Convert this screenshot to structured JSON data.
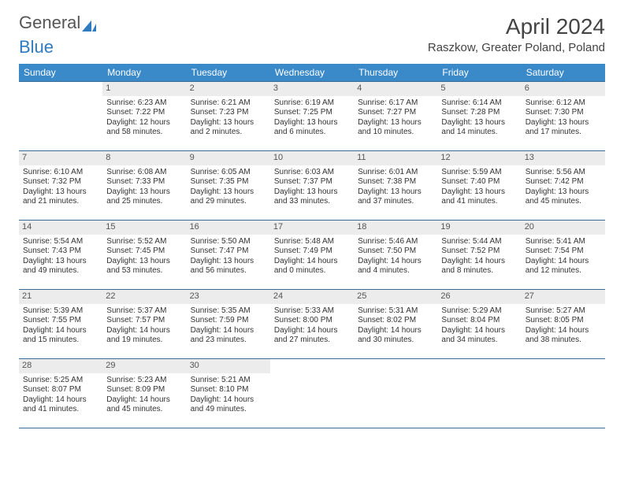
{
  "logo": {
    "part1": "General",
    "part2": "Blue"
  },
  "title": "April 2024",
  "location": "Raszkow, Greater Poland, Poland",
  "colors": {
    "header_bg": "#3a89c9",
    "header_text": "#ffffff",
    "cell_border": "#3a6b95",
    "daynum_bg": "#ececec",
    "logo_blue": "#2f7bbf"
  },
  "day_headers": [
    "Sunday",
    "Monday",
    "Tuesday",
    "Wednesday",
    "Thursday",
    "Friday",
    "Saturday"
  ],
  "weeks": [
    [
      {
        "n": "",
        "sr": "",
        "ss": "",
        "dl": ""
      },
      {
        "n": "1",
        "sr": "Sunrise: 6:23 AM",
        "ss": "Sunset: 7:22 PM",
        "dl": "Daylight: 12 hours and 58 minutes."
      },
      {
        "n": "2",
        "sr": "Sunrise: 6:21 AM",
        "ss": "Sunset: 7:23 PM",
        "dl": "Daylight: 13 hours and 2 minutes."
      },
      {
        "n": "3",
        "sr": "Sunrise: 6:19 AM",
        "ss": "Sunset: 7:25 PM",
        "dl": "Daylight: 13 hours and 6 minutes."
      },
      {
        "n": "4",
        "sr": "Sunrise: 6:17 AM",
        "ss": "Sunset: 7:27 PM",
        "dl": "Daylight: 13 hours and 10 minutes."
      },
      {
        "n": "5",
        "sr": "Sunrise: 6:14 AM",
        "ss": "Sunset: 7:28 PM",
        "dl": "Daylight: 13 hours and 14 minutes."
      },
      {
        "n": "6",
        "sr": "Sunrise: 6:12 AM",
        "ss": "Sunset: 7:30 PM",
        "dl": "Daylight: 13 hours and 17 minutes."
      }
    ],
    [
      {
        "n": "7",
        "sr": "Sunrise: 6:10 AM",
        "ss": "Sunset: 7:32 PM",
        "dl": "Daylight: 13 hours and 21 minutes."
      },
      {
        "n": "8",
        "sr": "Sunrise: 6:08 AM",
        "ss": "Sunset: 7:33 PM",
        "dl": "Daylight: 13 hours and 25 minutes."
      },
      {
        "n": "9",
        "sr": "Sunrise: 6:05 AM",
        "ss": "Sunset: 7:35 PM",
        "dl": "Daylight: 13 hours and 29 minutes."
      },
      {
        "n": "10",
        "sr": "Sunrise: 6:03 AM",
        "ss": "Sunset: 7:37 PM",
        "dl": "Daylight: 13 hours and 33 minutes."
      },
      {
        "n": "11",
        "sr": "Sunrise: 6:01 AM",
        "ss": "Sunset: 7:38 PM",
        "dl": "Daylight: 13 hours and 37 minutes."
      },
      {
        "n": "12",
        "sr": "Sunrise: 5:59 AM",
        "ss": "Sunset: 7:40 PM",
        "dl": "Daylight: 13 hours and 41 minutes."
      },
      {
        "n": "13",
        "sr": "Sunrise: 5:56 AM",
        "ss": "Sunset: 7:42 PM",
        "dl": "Daylight: 13 hours and 45 minutes."
      }
    ],
    [
      {
        "n": "14",
        "sr": "Sunrise: 5:54 AM",
        "ss": "Sunset: 7:43 PM",
        "dl": "Daylight: 13 hours and 49 minutes."
      },
      {
        "n": "15",
        "sr": "Sunrise: 5:52 AM",
        "ss": "Sunset: 7:45 PM",
        "dl": "Daylight: 13 hours and 53 minutes."
      },
      {
        "n": "16",
        "sr": "Sunrise: 5:50 AM",
        "ss": "Sunset: 7:47 PM",
        "dl": "Daylight: 13 hours and 56 minutes."
      },
      {
        "n": "17",
        "sr": "Sunrise: 5:48 AM",
        "ss": "Sunset: 7:49 PM",
        "dl": "Daylight: 14 hours and 0 minutes."
      },
      {
        "n": "18",
        "sr": "Sunrise: 5:46 AM",
        "ss": "Sunset: 7:50 PM",
        "dl": "Daylight: 14 hours and 4 minutes."
      },
      {
        "n": "19",
        "sr": "Sunrise: 5:44 AM",
        "ss": "Sunset: 7:52 PM",
        "dl": "Daylight: 14 hours and 8 minutes."
      },
      {
        "n": "20",
        "sr": "Sunrise: 5:41 AM",
        "ss": "Sunset: 7:54 PM",
        "dl": "Daylight: 14 hours and 12 minutes."
      }
    ],
    [
      {
        "n": "21",
        "sr": "Sunrise: 5:39 AM",
        "ss": "Sunset: 7:55 PM",
        "dl": "Daylight: 14 hours and 15 minutes."
      },
      {
        "n": "22",
        "sr": "Sunrise: 5:37 AM",
        "ss": "Sunset: 7:57 PM",
        "dl": "Daylight: 14 hours and 19 minutes."
      },
      {
        "n": "23",
        "sr": "Sunrise: 5:35 AM",
        "ss": "Sunset: 7:59 PM",
        "dl": "Daylight: 14 hours and 23 minutes."
      },
      {
        "n": "24",
        "sr": "Sunrise: 5:33 AM",
        "ss": "Sunset: 8:00 PM",
        "dl": "Daylight: 14 hours and 27 minutes."
      },
      {
        "n": "25",
        "sr": "Sunrise: 5:31 AM",
        "ss": "Sunset: 8:02 PM",
        "dl": "Daylight: 14 hours and 30 minutes."
      },
      {
        "n": "26",
        "sr": "Sunrise: 5:29 AM",
        "ss": "Sunset: 8:04 PM",
        "dl": "Daylight: 14 hours and 34 minutes."
      },
      {
        "n": "27",
        "sr": "Sunrise: 5:27 AM",
        "ss": "Sunset: 8:05 PM",
        "dl": "Daylight: 14 hours and 38 minutes."
      }
    ],
    [
      {
        "n": "28",
        "sr": "Sunrise: 5:25 AM",
        "ss": "Sunset: 8:07 PM",
        "dl": "Daylight: 14 hours and 41 minutes."
      },
      {
        "n": "29",
        "sr": "Sunrise: 5:23 AM",
        "ss": "Sunset: 8:09 PM",
        "dl": "Daylight: 14 hours and 45 minutes."
      },
      {
        "n": "30",
        "sr": "Sunrise: 5:21 AM",
        "ss": "Sunset: 8:10 PM",
        "dl": "Daylight: 14 hours and 49 minutes."
      },
      {
        "n": "",
        "sr": "",
        "ss": "",
        "dl": ""
      },
      {
        "n": "",
        "sr": "",
        "ss": "",
        "dl": ""
      },
      {
        "n": "",
        "sr": "",
        "ss": "",
        "dl": ""
      },
      {
        "n": "",
        "sr": "",
        "ss": "",
        "dl": ""
      }
    ]
  ]
}
